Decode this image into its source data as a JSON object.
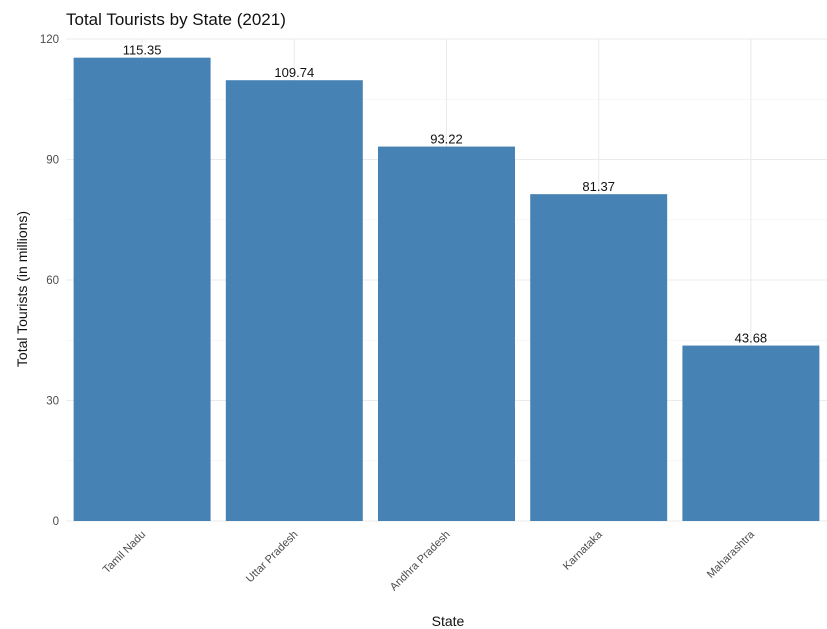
{
  "chart_data": {
    "type": "bar",
    "title": "Total Tourists by State (2021)",
    "xlabel": "State",
    "ylabel": "Total Tourists (in millions)",
    "categories": [
      "Tamil Nadu",
      "Uttar Pradesh",
      "Andhra Pradesh",
      "Karnataka",
      "Maharashtra"
    ],
    "values": [
      115.35,
      109.74,
      93.22,
      81.37,
      43.68
    ],
    "value_labels": [
      "115.35",
      "109.74",
      "93.22",
      "81.37",
      "43.68"
    ],
    "ylim": [
      0,
      120
    ],
    "yticks": [
      0,
      30,
      60,
      90,
      120
    ],
    "grid": true,
    "legend": "none",
    "bar_color": "#4682b4"
  }
}
